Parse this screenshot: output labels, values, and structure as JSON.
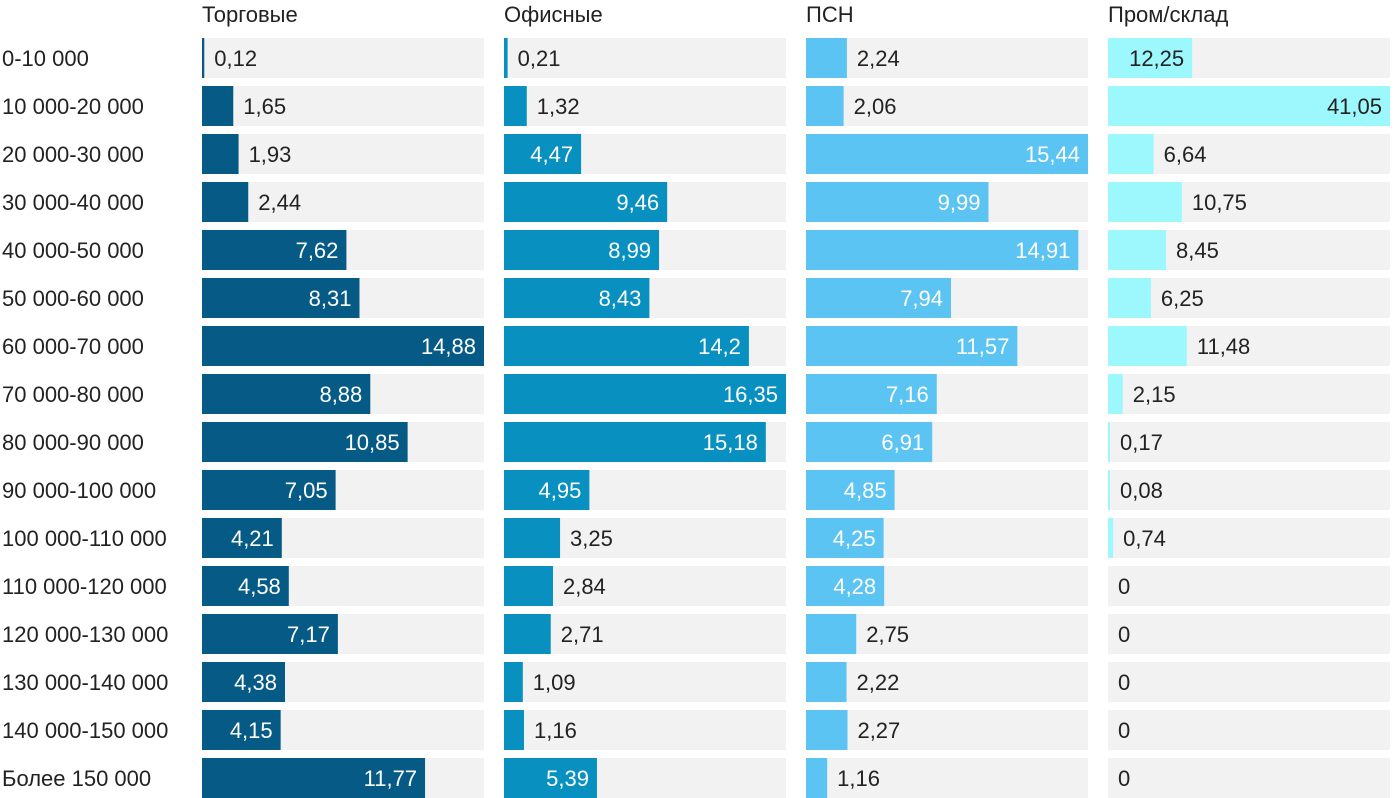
{
  "chart_data": {
    "type": "bar",
    "orientation": "horizontal",
    "layout": "small-multiples",
    "categories": [
      "0-10 000",
      "10 000-20 000",
      "20 000-30 000",
      "30 000-40 000",
      "40 000-50 000",
      "50 000-60 000",
      "60 000-70 000",
      "70 000-80 000",
      "80 000-90 000",
      "90 000-100 000",
      "100 000-110 000",
      "110 000-120 000",
      "120 000-130 000",
      "130 000-140 000",
      "140 000-150 000",
      "Более 150 000"
    ],
    "series": [
      {
        "name": "Торговые",
        "color": "#065a86",
        "values": [
          "0,12",
          "1,65",
          "1,93",
          "2,44",
          "7,62",
          "8,31",
          "14,88",
          "8,88",
          "10,85",
          "7,05",
          "4,21",
          "4,58",
          "7,17",
          "4,38",
          "4,15",
          "11,77"
        ]
      },
      {
        "name": "Офисные",
        "color": "#0891c0",
        "values": [
          "0,21",
          "1,32",
          "4,47",
          "9,46",
          "8,99",
          "8,43",
          "14,2",
          "16,35",
          "15,18",
          "4,95",
          "3,25",
          "2,84",
          "2,71",
          "1,09",
          "1,16",
          "5,39"
        ]
      },
      {
        "name": "ПСН",
        "color": "#5cc4f2",
        "values": [
          "2,24",
          "2,06",
          "15,44",
          "9,99",
          "14,91",
          "7,94",
          "11,57",
          "7,16",
          "6,91",
          "4,85",
          "4,25",
          "4,28",
          "2,75",
          "2,22",
          "2,27",
          "1,16"
        ]
      },
      {
        "name": "Пром/склад",
        "color": "#9df8fd",
        "values": [
          "12,25",
          "41,05",
          "6,64",
          "10,75",
          "8,45",
          "6,25",
          "11,48",
          "2,15",
          "0,17",
          "0,08",
          "0,74",
          "0",
          "0",
          "0",
          "0",
          "0"
        ]
      }
    ],
    "track_color": "#f2f2f2",
    "title": "",
    "xlabel": "",
    "ylabel": "",
    "grid": false,
    "legend": "none"
  }
}
